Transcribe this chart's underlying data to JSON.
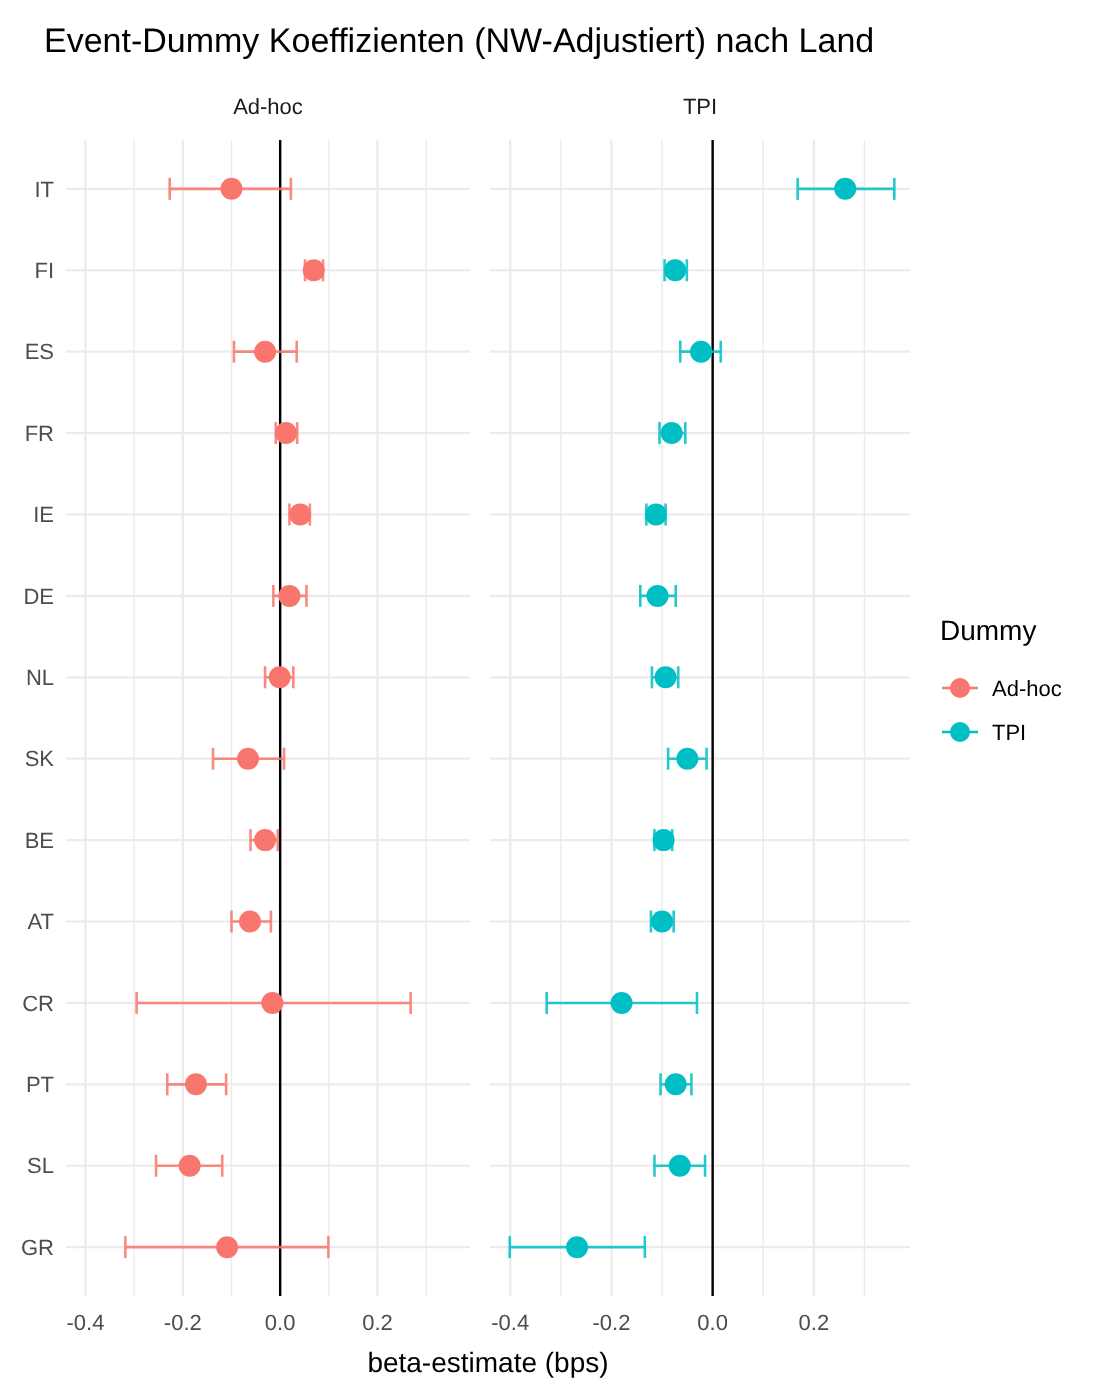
{
  "chart_data": [
    {
      "type": "scatter",
      "title": "Event-Dummy Koeffizienten (NW-Adjustiert) nach Land",
      "subtitle": "Ad-hoc",
      "xlabel": "beta-estimate (bps)",
      "legend_title": "Dummy",
      "legend": "right",
      "orientation": "horizontal",
      "grid": true,
      "marker": "circle",
      "categories": [
        "IT",
        "FI",
        "ES",
        "FR",
        "IE",
        "DE",
        "NL",
        "SK",
        "BE",
        "AT",
        "CR",
        "PT",
        "SL",
        "GR"
      ],
      "xlim": [
        -0.44,
        0.39
      ],
      "xticks": [
        {
          "value": -0.4,
          "label": "-0.4"
        },
        {
          "value": -0.3,
          "label": null
        },
        {
          "value": -0.2,
          "label": "-0.2"
        },
        {
          "value": -0.1,
          "label": null
        },
        {
          "value": 0,
          "label": "0.0"
        },
        {
          "value": 0.1,
          "label": null
        },
        {
          "value": 0.2,
          "label": "0.2"
        },
        {
          "value": 0.3,
          "label": null
        }
      ],
      "ref_lines": [
        {
          "axis": "x",
          "value": 0,
          "color": "#000000"
        }
      ],
      "series": [
        {
          "name": "Ad-hoc",
          "color": "#f8766d",
          "values": [
            -0.1,
            0.069,
            -0.031,
            0.012,
            0.041,
            0.019,
            -0.001,
            -0.066,
            -0.031,
            -0.062,
            -0.016,
            -0.173,
            -0.186,
            -0.109
          ],
          "errors": [
            [
              -0.227,
              0.022
            ],
            [
              0.051,
              0.088
            ],
            [
              -0.095,
              0.034
            ],
            [
              -0.009,
              0.035
            ],
            [
              0.019,
              0.061
            ],
            [
              -0.014,
              0.054
            ],
            [
              -0.031,
              0.027
            ],
            [
              -0.138,
              0.008
            ],
            [
              -0.061,
              -0.005
            ],
            [
              -0.1,
              -0.019
            ],
            [
              -0.295,
              0.268
            ],
            [
              -0.232,
              -0.111
            ],
            [
              -0.255,
              -0.119
            ],
            [
              -0.318,
              0.099
            ]
          ]
        }
      ]
    },
    {
      "type": "scatter",
      "subtitle": "TPI",
      "legend": "right",
      "orientation": "horizontal",
      "grid": true,
      "marker": "circle",
      "tick_labels": "x",
      "categories": [
        null,
        null,
        null,
        null,
        null,
        null,
        null,
        null,
        null,
        null,
        null,
        null,
        null,
        null
      ],
      "xlim": [
        -0.44,
        0.39
      ],
      "xticks": [
        {
          "value": -0.4,
          "label": "-0.4"
        },
        {
          "value": -0.3,
          "label": null
        },
        {
          "value": -0.2,
          "label": "-0.2"
        },
        {
          "value": -0.1,
          "label": null
        },
        {
          "value": 0,
          "label": "0.0"
        },
        {
          "value": 0.1,
          "label": null
        },
        {
          "value": 0.2,
          "label": "0.2"
        },
        {
          "value": 0.3,
          "label": null
        }
      ],
      "ref_lines": [
        {
          "axis": "x",
          "value": 0,
          "color": "#000000"
        }
      ],
      "series": [
        {
          "name": "TPI",
          "color": "#00bfc4",
          "values": [
            0.262,
            -0.074,
            -0.023,
            -0.081,
            -0.112,
            -0.109,
            -0.093,
            -0.05,
            -0.097,
            -0.1,
            -0.18,
            -0.073,
            -0.065,
            -0.268
          ],
          "errors": [
            [
              0.168,
              0.359
            ],
            [
              -0.095,
              -0.051
            ],
            [
              -0.064,
              0.016
            ],
            [
              -0.105,
              -0.054
            ],
            [
              -0.131,
              -0.093
            ],
            [
              -0.143,
              -0.073
            ],
            [
              -0.12,
              -0.068
            ],
            [
              -0.088,
              -0.012
            ],
            [
              -0.115,
              -0.08
            ],
            [
              -0.122,
              -0.077
            ],
            [
              -0.328,
              -0.031
            ],
            [
              -0.103,
              -0.042
            ],
            [
              -0.115,
              -0.015
            ],
            [
              -0.401,
              -0.134
            ]
          ]
        }
      ]
    }
  ]
}
